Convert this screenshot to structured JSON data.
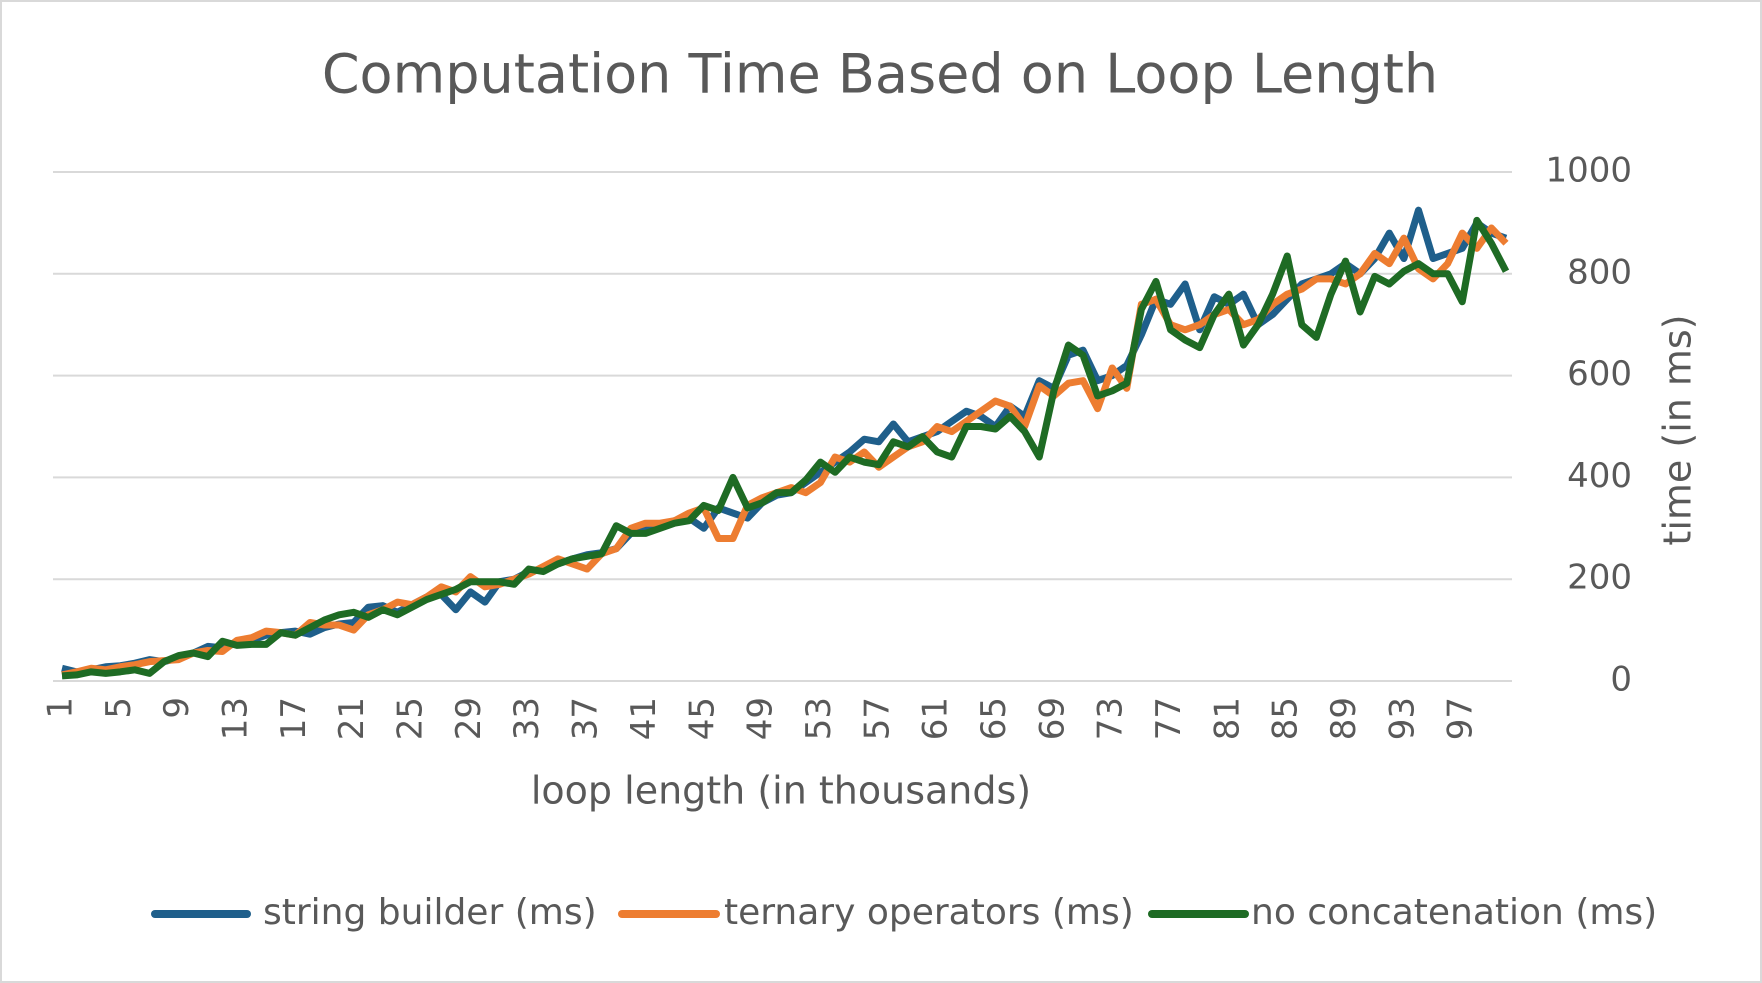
{
  "chart_data": {
    "type": "line",
    "title": "Computation Time Based on Loop Length",
    "x_label": "loop length (in thousands)",
    "y_label": "time (in ms)",
    "categories": [
      1,
      null,
      null,
      null,
      5,
      null,
      null,
      null,
      9,
      null,
      null,
      null,
      13,
      null,
      null,
      null,
      17,
      null,
      null,
      null,
      21,
      null,
      null,
      null,
      25,
      null,
      null,
      null,
      29,
      null,
      null,
      null,
      33,
      null,
      null,
      null,
      37,
      null,
      null,
      null,
      41,
      null,
      null,
      null,
      45,
      null,
      null,
      null,
      49,
      null,
      null,
      null,
      53,
      null,
      null,
      null,
      57,
      null,
      null,
      null,
      61,
      null,
      null,
      null,
      65,
      null,
      null,
      null,
      69,
      null,
      null,
      null,
      73,
      null,
      null,
      null,
      77,
      null,
      null,
      null,
      81,
      null,
      null,
      null,
      85,
      null,
      null,
      null,
      89,
      null,
      null,
      null,
      93,
      null,
      null,
      null,
      97,
      null,
      null,
      null
    ],
    "series": [
      {
        "name": "string builder (ms)",
        "color": "#1f5f8b",
        "values": [
          25,
          18,
          22,
          28,
          30,
          35,
          42,
          38,
          45,
          55,
          68,
          65,
          75,
          80,
          90,
          95,
          98,
          92,
          105,
          112,
          115,
          145,
          148,
          135,
          150,
          165,
          170,
          140,
          175,
          155,
          195,
          200,
          215,
          220,
          230,
          240,
          248,
          252,
          260,
          290,
          300,
          305,
          315,
          320,
          300,
          340,
          330,
          320,
          350,
          365,
          370,
          390,
          410,
          430,
          450,
          475,
          470,
          505,
          470,
          480,
          490,
          510,
          530,
          520,
          500,
          540,
          520,
          590,
          575,
          640,
          650,
          590,
          600,
          620,
          680,
          750,
          740,
          780,
          690,
          755,
          740,
          760,
          700,
          720,
          750,
          780,
          790,
          800,
          820,
          800,
          830,
          880,
          830,
          925,
          830,
          840,
          850,
          900,
          880,
          870
        ]
      },
      {
        "name": "ternary operators (ms)",
        "color": "#ed7d31",
        "values": [
          12,
          18,
          25,
          22,
          28,
          32,
          38,
          40,
          42,
          55,
          60,
          58,
          80,
          85,
          98,
          95,
          90,
          115,
          110,
          110,
          100,
          130,
          140,
          155,
          150,
          165,
          185,
          175,
          205,
          185,
          190,
          200,
          210,
          225,
          240,
          230,
          220,
          250,
          260,
          300,
          310,
          310,
          315,
          330,
          340,
          280,
          280,
          345,
          360,
          370,
          380,
          370,
          390,
          440,
          430,
          450,
          420,
          440,
          460,
          470,
          500,
          490,
          510,
          530,
          550,
          540,
          500,
          580,
          560,
          585,
          590,
          535,
          615,
          575,
          740,
          750,
          700,
          690,
          700,
          720,
          730,
          700,
          710,
          740,
          760,
          770,
          790,
          790,
          780,
          800,
          840,
          820,
          870,
          810,
          790,
          820,
          880,
          850,
          890,
          860
        ]
      },
      {
        "name": "no concatenation (ms)",
        "color": "#1e6b24",
        "values": [
          10,
          12,
          18,
          15,
          18,
          22,
          15,
          38,
          50,
          55,
          48,
          78,
          70,
          72,
          72,
          95,
          90,
          105,
          120,
          130,
          135,
          125,
          140,
          130,
          145,
          160,
          170,
          180,
          195,
          195,
          195,
          190,
          220,
          215,
          230,
          240,
          245,
          250,
          305,
          290,
          290,
          300,
          310,
          315,
          345,
          335,
          400,
          340,
          350,
          370,
          370,
          395,
          430,
          410,
          440,
          430,
          425,
          470,
          460,
          480,
          450,
          440,
          500,
          500,
          495,
          520,
          490,
          440,
          570,
          660,
          640,
          560,
          570,
          585,
          730,
          785,
          690,
          670,
          655,
          720,
          760,
          660,
          700,
          760,
          835,
          700,
          675,
          760,
          825,
          725,
          795,
          780,
          805,
          820,
          800,
          800,
          745,
          905,
          860,
          805
        ]
      }
    ],
    "ylim": [
      0,
      1000
    ],
    "yticks": [
      0,
      200,
      400,
      600,
      800,
      1000
    ],
    "grid": true,
    "legend": "bottom"
  }
}
